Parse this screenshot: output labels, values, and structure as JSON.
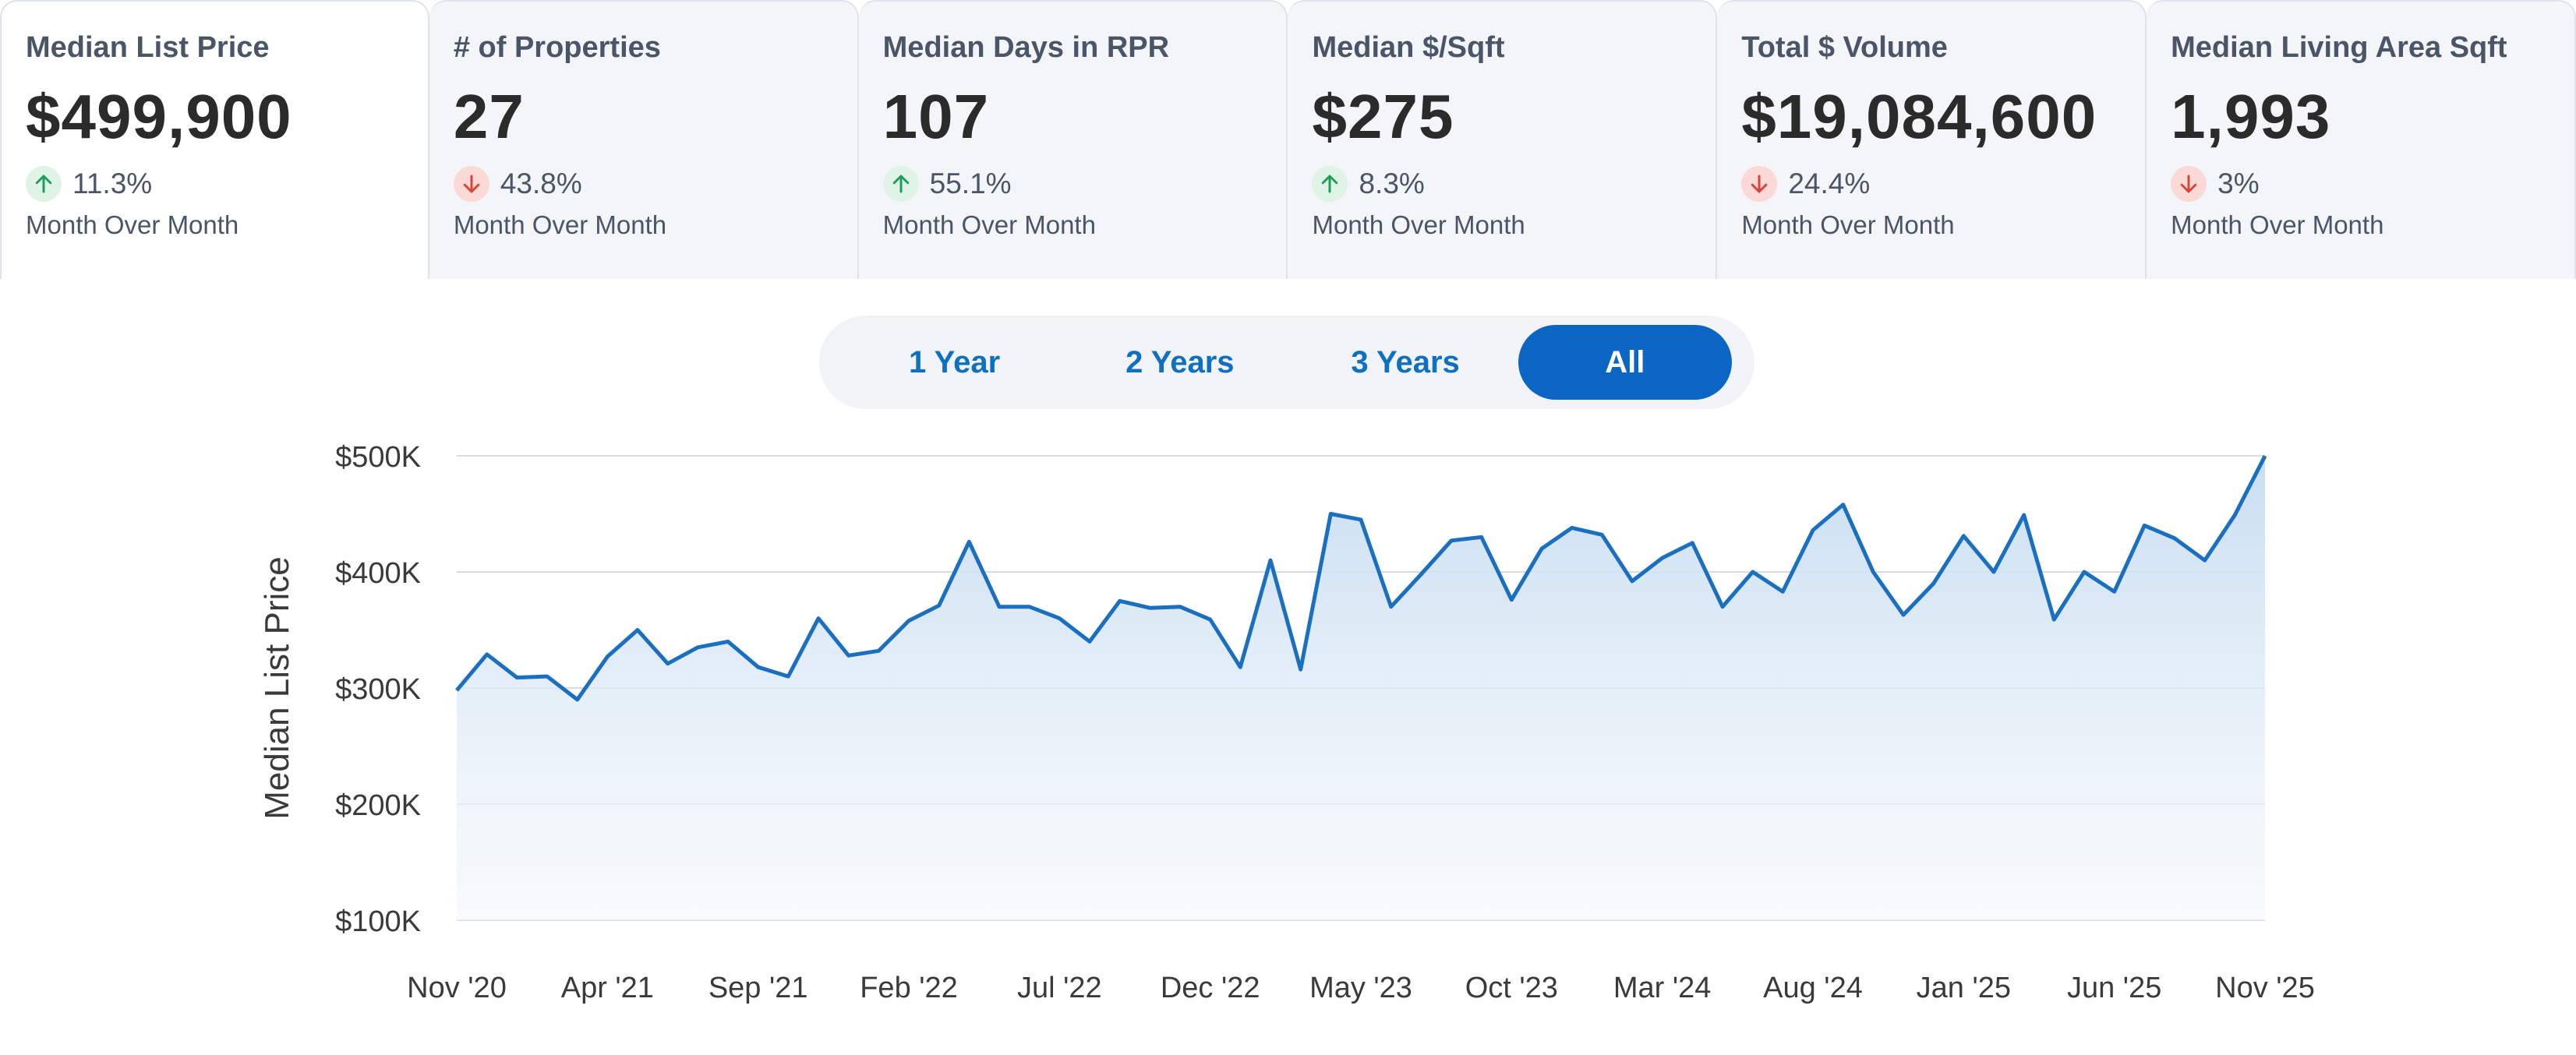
{
  "metrics": [
    {
      "title": "Median List Price",
      "value": "$499,900",
      "direction": "up",
      "change": "11.3%",
      "period": "Month Over Month",
      "active": true
    },
    {
      "title": "# of Properties",
      "value": "27",
      "direction": "down",
      "change": "43.8%",
      "period": "Month Over Month",
      "active": false
    },
    {
      "title": "Median Days in RPR",
      "value": "107",
      "direction": "up",
      "change": "55.1%",
      "period": "Month Over Month",
      "active": false
    },
    {
      "title": "Median $/Sqft",
      "value": "$275",
      "direction": "up",
      "change": "8.3%",
      "period": "Month Over Month",
      "active": false
    },
    {
      "title": "Total $ Volume",
      "value": "$19,084,600",
      "direction": "down",
      "change": "24.4%",
      "period": "Month Over Month",
      "active": false
    },
    {
      "title": "Median Living Area Sqft",
      "value": "1,993",
      "direction": "down",
      "change": "3%",
      "period": "Month Over Month",
      "active": false
    }
  ],
  "range_toggle": {
    "options": [
      "1 Year",
      "2 Years",
      "3 Years",
      "All"
    ],
    "selected": "All"
  },
  "colors": {
    "line": "#1b6fc0",
    "up_icon": "#1e9e5a",
    "down_icon": "#d64535",
    "toggle_active": "#0a66c2"
  },
  "chart_data": {
    "type": "area",
    "ylabel": "Median List Price",
    "yticks": [
      "$100K",
      "$200K",
      "$300K",
      "$400K",
      "$500K"
    ],
    "ylim": [
      100000,
      500000
    ],
    "xticks": [
      "Nov '20",
      "Apr '21",
      "Sep '21",
      "Feb '22",
      "Jul '22",
      "Dec '22",
      "May '23",
      "Oct '23",
      "Mar '24",
      "Aug '24",
      "Jan '25",
      "Jun '25",
      "Nov '25"
    ],
    "grid": true,
    "values": [
      298000,
      329000,
      309000,
      310000,
      290000,
      327000,
      350000,
      321000,
      335000,
      340000,
      318000,
      310000,
      360000,
      328000,
      332000,
      358000,
      371000,
      426000,
      370000,
      370000,
      360000,
      340000,
      375000,
      369000,
      370000,
      359000,
      318000,
      410000,
      316000,
      450000,
      445000,
      370000,
      398000,
      427000,
      430000,
      376000,
      420000,
      438000,
      432000,
      392000,
      412000,
      425000,
      370000,
      400000,
      383000,
      436000,
      458000,
      400000,
      363000,
      390000,
      431000,
      400000,
      449000,
      359000,
      400000,
      383000,
      440000,
      429000,
      410000,
      449000,
      499900
    ]
  }
}
